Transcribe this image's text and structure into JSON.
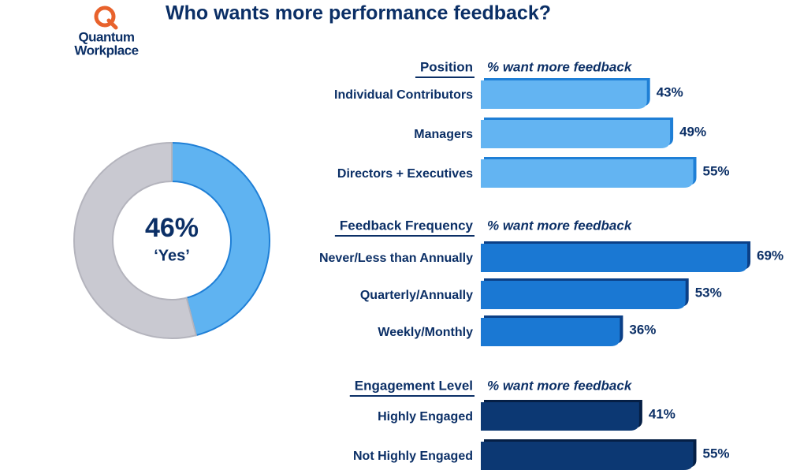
{
  "title": "Who wants more performance feedback?",
  "logo": [
    "Quantum",
    "Workplace"
  ],
  "chart_data": [
    {
      "type": "pie",
      "categories": [
        "‘Yes’",
        null
      ],
      "values": [
        46,
        54
      ],
      "value_labels": [
        "46%",
        null
      ],
      "colors": [
        "#5fb3f1",
        "#c9c9d1"
      ]
    },
    {
      "type": "bar",
      "title": "Position",
      "subtitle": "% want more feedback",
      "categories": [
        "Individual Contributors",
        "Managers",
        "Directors + Executives"
      ],
      "values": [
        43,
        49,
        55
      ],
      "value_labels": [
        "43%",
        "49%",
        "55%"
      ],
      "color": "#63b4f2",
      "edge_color": "#1f7fd6"
    },
    {
      "type": "bar",
      "title": "Feedback Frequency",
      "subtitle": "% want more feedback",
      "categories": [
        "Never/Less than Annually",
        "Quarterly/Annually",
        "Weekly/Monthly"
      ],
      "values": [
        69,
        53,
        36
      ],
      "value_labels": [
        "69%",
        "53%",
        "36%"
      ],
      "color": "#1a78d3",
      "edge_color": "#0b3f86"
    },
    {
      "type": "bar",
      "title": "Engagement Level",
      "subtitle": "% want more feedback",
      "categories": [
        "Highly Engaged",
        "Not Highly Engaged"
      ],
      "values": [
        41,
        55
      ],
      "value_labels": [
        "41%",
        "55%"
      ],
      "color": "#0c3873",
      "edge_color": "#051f45"
    }
  ]
}
